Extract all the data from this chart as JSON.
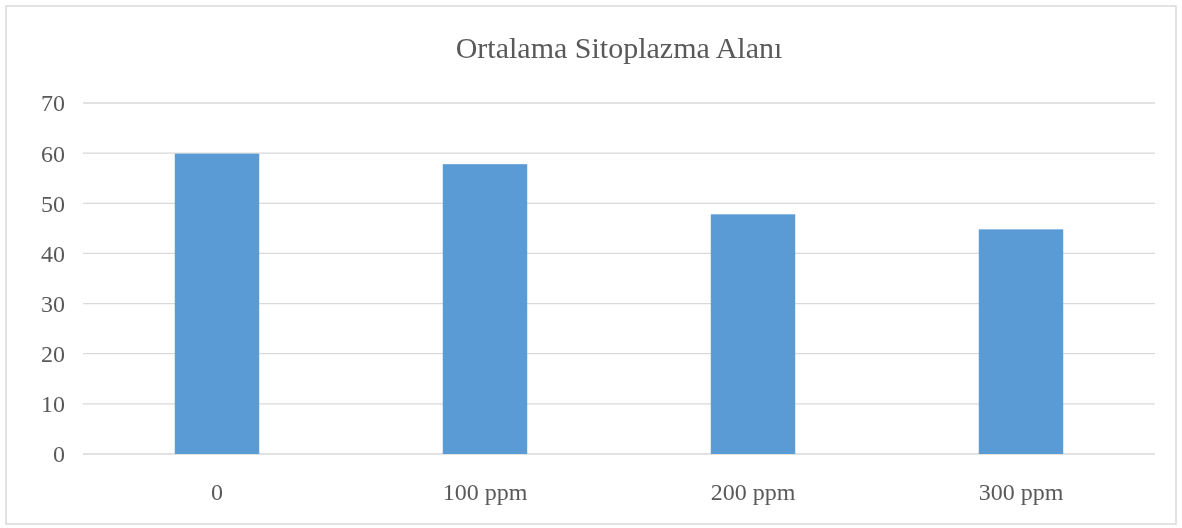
{
  "chart_data": {
    "type": "bar",
    "title": "Ortalama  Sitoplazma Alanı",
    "categories": [
      "0",
      "100 ppm",
      "200 ppm",
      "300 ppm"
    ],
    "values": [
      59.9,
      57.8,
      47.8,
      44.8
    ],
    "color": "#5b9bd5",
    "ylim": [
      0,
      70
    ],
    "yticks": [
      0,
      10,
      20,
      30,
      40,
      50,
      60,
      70
    ],
    "grid": "y"
  }
}
